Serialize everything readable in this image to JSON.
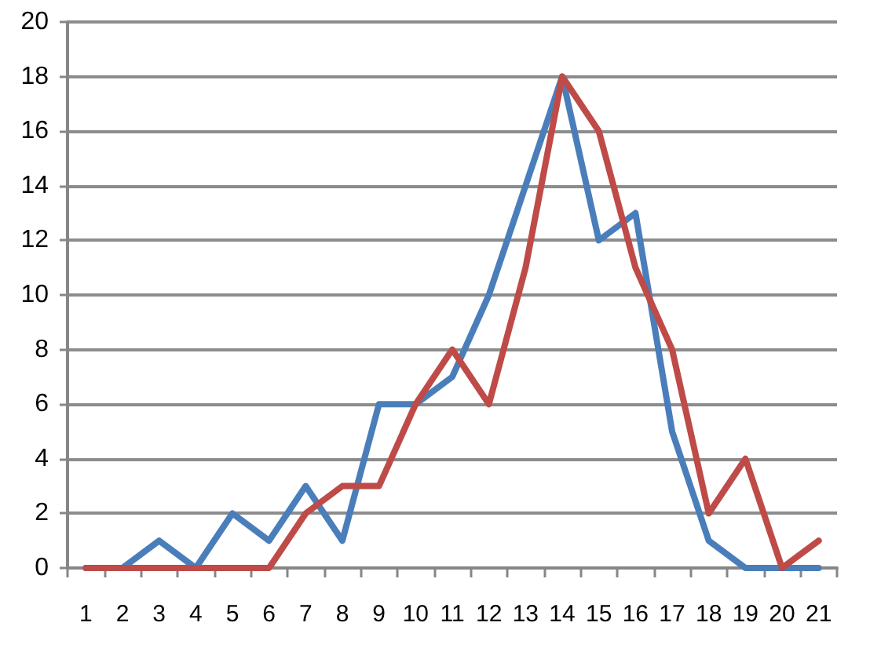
{
  "chart_data": {
    "type": "line",
    "categories": [
      "1",
      "2",
      "3",
      "4",
      "5",
      "6",
      "7",
      "8",
      "9",
      "10",
      "11",
      "12",
      "13",
      "14",
      "15",
      "16",
      "17",
      "18",
      "19",
      "20",
      "21"
    ],
    "series": [
      {
        "color": "#4a7ebb",
        "values": [
          0,
          0,
          1,
          0,
          2,
          1,
          3,
          1,
          6,
          6,
          7,
          10,
          14,
          18,
          12,
          13,
          5,
          1,
          0,
          0,
          0
        ]
      },
      {
        "color": "#be4b48",
        "values": [
          0,
          0,
          0,
          0,
          0,
          0,
          2,
          3,
          3,
          6,
          8,
          6,
          11,
          18,
          16,
          11,
          8,
          2,
          4,
          0,
          1
        ]
      }
    ],
    "ylim": [
      0,
      20
    ],
    "yticks": [
      0,
      2,
      4,
      6,
      8,
      10,
      12,
      14,
      16,
      18,
      20
    ],
    "grid": "y",
    "marker": "none",
    "line_style": "solid"
  }
}
